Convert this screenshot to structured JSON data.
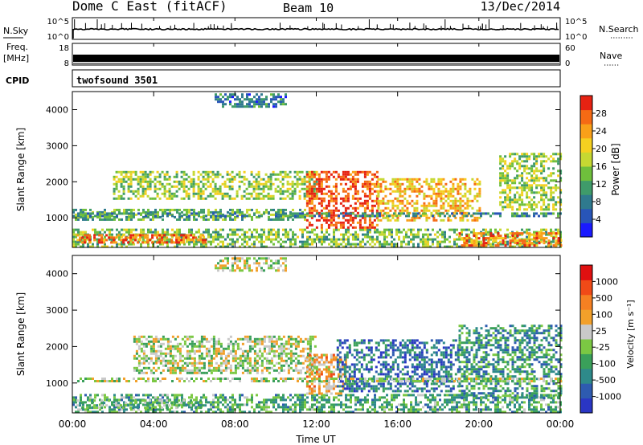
{
  "header": {
    "station": "Dome C East (fitACF)",
    "beam": "Beam 10",
    "date": "13/Dec/2014"
  },
  "panels": {
    "nsky": {
      "label": "N.Sky",
      "tick_top": "10^5",
      "tick_bottom": "10^0"
    },
    "nsearch": {
      "label": "N.Search",
      "tick_top": "10^5",
      "tick_bottom": "10^0"
    },
    "freq": {
      "label_line1": "Freq.",
      "label_line2": "[MHz]",
      "tick_top": "18",
      "tick_bottom": "8"
    },
    "nave": {
      "label": "Nave",
      "tick_top": "60",
      "tick_bottom": "0"
    },
    "cpid": {
      "label": "CPID",
      "value": "twofsound 3501"
    }
  },
  "time_axis": {
    "label": "Time UT",
    "ticks": [
      "00:00",
      "04:00",
      "08:00",
      "12:00",
      "16:00",
      "20:00",
      "00:00"
    ]
  },
  "chart_data": [
    {
      "type": "heatmap",
      "name": "power",
      "ylabel": "Slant Range [km]",
      "yticks": [
        "1000",
        "2000",
        "3000",
        "4000"
      ],
      "ylim": [
        180,
        4500
      ],
      "xlim_hours": [
        0,
        24
      ],
      "colorbar": {
        "label": "Power [dB]",
        "ticks": [
          "4",
          "8",
          "12",
          "16",
          "20",
          "24",
          "28"
        ],
        "colors": [
          "#1a1aff",
          "#2855b8",
          "#2f7a8e",
          "#3f9b6a",
          "#6fbf3c",
          "#c6d832",
          "#f5d020",
          "#f9a019",
          "#f56a14",
          "#e62212"
        ]
      },
      "regions": [
        {
          "t0": 0.0,
          "t1": 24.0,
          "r0": 200,
          "r1": 700,
          "level": 0.45
        },
        {
          "t0": 0.2,
          "t1": 6.5,
          "r0": 300,
          "r1": 550,
          "level": 0.85
        },
        {
          "t0": 19.0,
          "t1": 24.0,
          "r0": 250,
          "r1": 600,
          "level": 0.8
        },
        {
          "t0": 0.0,
          "t1": 11.5,
          "r0": 950,
          "r1": 1250,
          "level": 0.4
        },
        {
          "t0": 2.0,
          "t1": 12.0,
          "r0": 1500,
          "r1": 2300,
          "level": 0.5
        },
        {
          "t0": 11.5,
          "t1": 15.0,
          "r0": 700,
          "r1": 2300,
          "level": 0.9
        },
        {
          "t0": 15.0,
          "t1": 20.0,
          "r0": 900,
          "r1": 2100,
          "level": 0.7
        },
        {
          "t0": 0.0,
          "t1": 24.0,
          "r0": 1050,
          "r1": 1150,
          "level": 0.3
        },
        {
          "t0": 7.0,
          "t1": 10.5,
          "r0": 4100,
          "r1": 4450,
          "level": 0.25
        },
        {
          "t0": 21.0,
          "t1": 24.0,
          "r0": 1200,
          "r1": 2800,
          "level": 0.5
        }
      ]
    },
    {
      "type": "heatmap",
      "name": "velocity",
      "ylabel": "Slant Range [km]",
      "yticks": [
        "1000",
        "2000",
        "3000",
        "4000"
      ],
      "ylim": [
        180,
        4500
      ],
      "xlim_hours": [
        0,
        24
      ],
      "colorbar": {
        "label": "Velocity [m s⁻¹]",
        "ticks": [
          "1000",
          "500",
          "100",
          "25",
          "-25",
          "-100",
          "-500",
          "-1000"
        ],
        "colors": [
          "#2a36c4",
          "#2e5bb0",
          "#2e8a8a",
          "#3aa05a",
          "#7bc843",
          "#c9c9c9",
          "#f2a02a",
          "#f58022",
          "#f04a17",
          "#e01010"
        ]
      },
      "regions": [
        {
          "t0": 0.0,
          "t1": 24.0,
          "r0": 200,
          "r1": 700,
          "level": 0.35
        },
        {
          "t0": 0.2,
          "t1": 6.5,
          "r0": 300,
          "r1": 550,
          "level": 0.4
        },
        {
          "t0": 3.0,
          "t1": 12.0,
          "r0": 1300,
          "r1": 2300,
          "level": 0.5
        },
        {
          "t0": 11.5,
          "t1": 13.5,
          "r0": 700,
          "r1": 1800,
          "level": 0.65
        },
        {
          "t0": 13.0,
          "t1": 19.0,
          "r0": 800,
          "r1": 2200,
          "level": 0.2
        },
        {
          "t0": 19.0,
          "t1": 24.0,
          "r0": 600,
          "r1": 2600,
          "level": 0.3
        },
        {
          "t0": 0.0,
          "t1": 24.0,
          "r0": 1050,
          "r1": 1150,
          "level": 0.5
        },
        {
          "t0": 7.0,
          "t1": 10.5,
          "r0": 4100,
          "r1": 4450,
          "level": 0.5
        }
      ]
    }
  ]
}
